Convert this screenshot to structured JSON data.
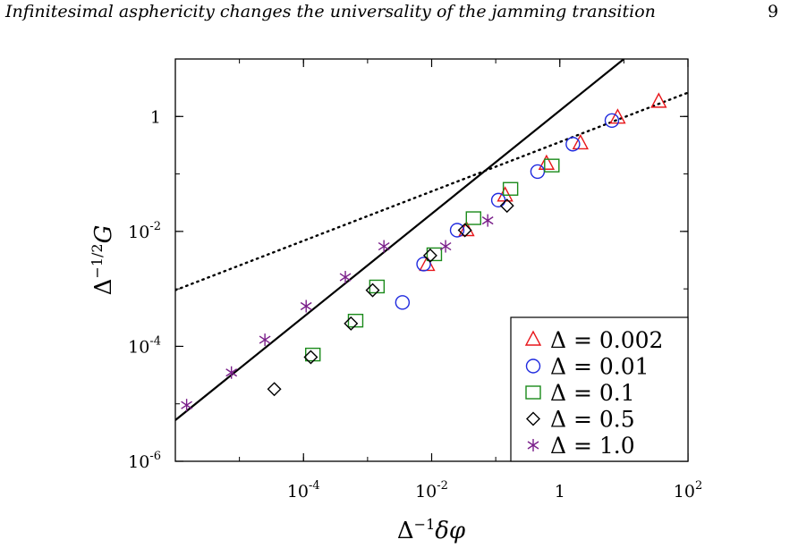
{
  "header": {
    "running_title": "Infinitesimal asphericity changes the universality of the jamming transition",
    "page_number": "9"
  },
  "chart_data": {
    "type": "scatter",
    "x_scale": "log",
    "y_scale": "log",
    "xlim": [
      1e-06,
      100
    ],
    "ylim": [
      1e-06,
      10
    ],
    "x_ticks": [
      {
        "value": 0.0001,
        "mantissa": "10",
        "exponent": "-4"
      },
      {
        "value": 0.01,
        "mantissa": "10",
        "exponent": "-2"
      },
      {
        "value": 1,
        "mantissa": "1",
        "exponent": ""
      },
      {
        "value": 100,
        "mantissa": "10",
        "exponent": "2"
      }
    ],
    "y_ticks": [
      {
        "value": 1e-06,
        "mantissa": "10",
        "exponent": "-6"
      },
      {
        "value": 0.0001,
        "mantissa": "10",
        "exponent": "-4"
      },
      {
        "value": 0.01,
        "mantissa": "10",
        "exponent": "-2"
      },
      {
        "value": 1,
        "mantissa": "1",
        "exponent": ""
      }
    ],
    "xlabel": {
      "base": "Δ",
      "exponent": "−1",
      "rest": "δφ"
    },
    "ylabel": {
      "base": "Δ",
      "exponent": "−1/2",
      "rest": "G"
    },
    "legend_position": "bottom-right",
    "reference_lines": [
      {
        "style": "solid",
        "color": "#000000",
        "points": [
          [
            1e-06,
            5.2e-06
          ],
          [
            10,
            10
          ]
        ]
      },
      {
        "style": "dotted",
        "color": "#000000",
        "points": [
          [
            1e-06,
            0.00095
          ],
          [
            100,
            2.6
          ]
        ]
      }
    ],
    "series": [
      {
        "name": "Δ = 0.002",
        "marker": "triangle",
        "color": "#e8171b",
        "points": [
          [
            0.0085,
            0.0026
          ],
          [
            0.035,
            0.0105
          ],
          [
            0.14,
            0.042
          ],
          [
            0.62,
            0.15
          ],
          [
            2.1,
            0.34
          ],
          [
            8,
            0.95
          ],
          [
            35,
            1.8
          ]
        ]
      },
      {
        "name": "Δ = 0.01",
        "marker": "circle",
        "color": "#1f2adf",
        "points": [
          [
            0.0035,
            0.00058
          ],
          [
            0.0075,
            0.0027
          ],
          [
            0.025,
            0.0105
          ],
          [
            0.11,
            0.035
          ],
          [
            0.45,
            0.11
          ],
          [
            1.6,
            0.33
          ],
          [
            6.5,
            0.85
          ]
        ]
      },
      {
        "name": "Δ = 0.1",
        "marker": "square",
        "color": "#1a8a1a",
        "points": [
          [
            0.00014,
            7.2e-05
          ],
          [
            0.00065,
            0.00028
          ],
          [
            0.0014,
            0.0011
          ],
          [
            0.011,
            0.004
          ],
          [
            0.045,
            0.017
          ],
          [
            0.17,
            0.055
          ],
          [
            0.75,
            0.14
          ]
        ]
      },
      {
        "name": "Δ = 0.5",
        "marker": "diamond",
        "color": "#000000",
        "points": [
          [
            3.5e-05,
            1.8e-05
          ],
          [
            0.00013,
            6.5e-05
          ],
          [
            0.00055,
            0.00025
          ],
          [
            0.0012,
            0.00095
          ],
          [
            0.0095,
            0.0038
          ],
          [
            0.033,
            0.0105
          ],
          [
            0.15,
            0.028
          ]
        ]
      },
      {
        "name": "Δ = 1.0",
        "marker": "asterisk",
        "color": "#7a1f8a",
        "points": [
          [
            1.5e-06,
            9.5e-06
          ],
          [
            7.5e-06,
            3.5e-05
          ],
          [
            2.5e-05,
            0.00013
          ],
          [
            0.00011,
            0.0005
          ],
          [
            0.00045,
            0.0016
          ],
          [
            0.0018,
            0.0055
          ],
          [
            0.0165,
            0.0055
          ],
          [
            0.075,
            0.0155
          ]
        ]
      }
    ]
  }
}
